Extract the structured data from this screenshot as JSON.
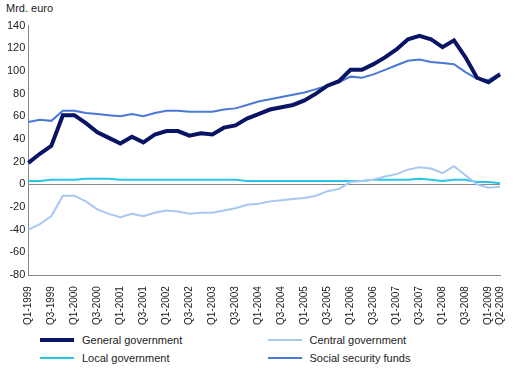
{
  "chart_data": {
    "type": "line",
    "y_label": "Mrd. euro",
    "categories": [
      "Q1-1999",
      null,
      "Q3-1999",
      null,
      "Q1-2000",
      null,
      "Q3-2000",
      null,
      "Q1-2001",
      null,
      "Q3-2001",
      null,
      "Q1-2002",
      null,
      "Q3-2002",
      null,
      "Q1-2003",
      null,
      "Q3-2003",
      null,
      "Q1-2004",
      null,
      "Q3-2004",
      null,
      "Q1-2005",
      null,
      "Q3-2005",
      null,
      "Q1-2006",
      null,
      "Q3-2006",
      null,
      "Q1-2007",
      null,
      "Q3-2007",
      null,
      "Q1-2008",
      null,
      "Q3-2008",
      null,
      "Q1-2009",
      "Q2-2009"
    ],
    "series": [
      {
        "name": "General government",
        "color": "#0a1464",
        "values": [
          19,
          27,
          34,
          61,
          61,
          54,
          46,
          41,
          36,
          42,
          37,
          44,
          47,
          47,
          43,
          45,
          44,
          50,
          52,
          58,
          62,
          66,
          68,
          70,
          74,
          80,
          87,
          91,
          101,
          101,
          106,
          112,
          119,
          128,
          131,
          128,
          121,
          127,
          112,
          94,
          90,
          97
        ]
      },
      {
        "name": "Central government",
        "color": "#a8c8f0",
        "values": [
          -40,
          -35,
          -28,
          -10,
          -10,
          -15,
          -22,
          -26,
          -29,
          -26,
          -28,
          -25,
          -23,
          -24,
          -26,
          -25,
          -25,
          -23,
          -21,
          -18,
          -17,
          -15,
          -14,
          -13,
          -12,
          -10,
          -6,
          -4,
          2,
          3,
          4,
          7,
          9,
          13,
          15,
          14,
          10,
          16,
          8,
          0,
          -3,
          -2
        ]
      },
      {
        "name": "Local government",
        "color": "#29c5e6",
        "values": [
          3,
          3,
          4,
          4,
          4,
          5,
          5,
          5,
          4,
          4,
          4,
          4,
          4,
          4,
          4,
          4,
          4,
          4,
          4,
          3,
          3,
          3,
          3,
          3,
          3,
          3,
          3,
          3,
          3,
          3,
          4,
          4,
          4,
          4,
          5,
          4,
          3,
          4,
          4,
          2,
          2,
          1
        ]
      },
      {
        "name": "Social security funds",
        "color": "#4a78d6",
        "values": [
          55,
          57,
          56,
          65,
          65,
          63,
          62,
          61,
          60,
          62,
          60,
          63,
          65,
          65,
          64,
          64,
          64,
          66,
          67,
          70,
          73,
          75,
          77,
          79,
          81,
          84,
          87,
          90,
          95,
          94,
          97,
          101,
          105,
          109,
          110,
          108,
          107,
          106,
          99,
          93,
          92,
          98
        ]
      }
    ],
    "ylim": [
      -80,
      140
    ],
    "yticks": [
      -80,
      -60,
      -40,
      -20,
      0,
      20,
      40,
      60,
      80,
      100,
      120,
      140
    ],
    "grid": false,
    "legend": "bottom"
  }
}
